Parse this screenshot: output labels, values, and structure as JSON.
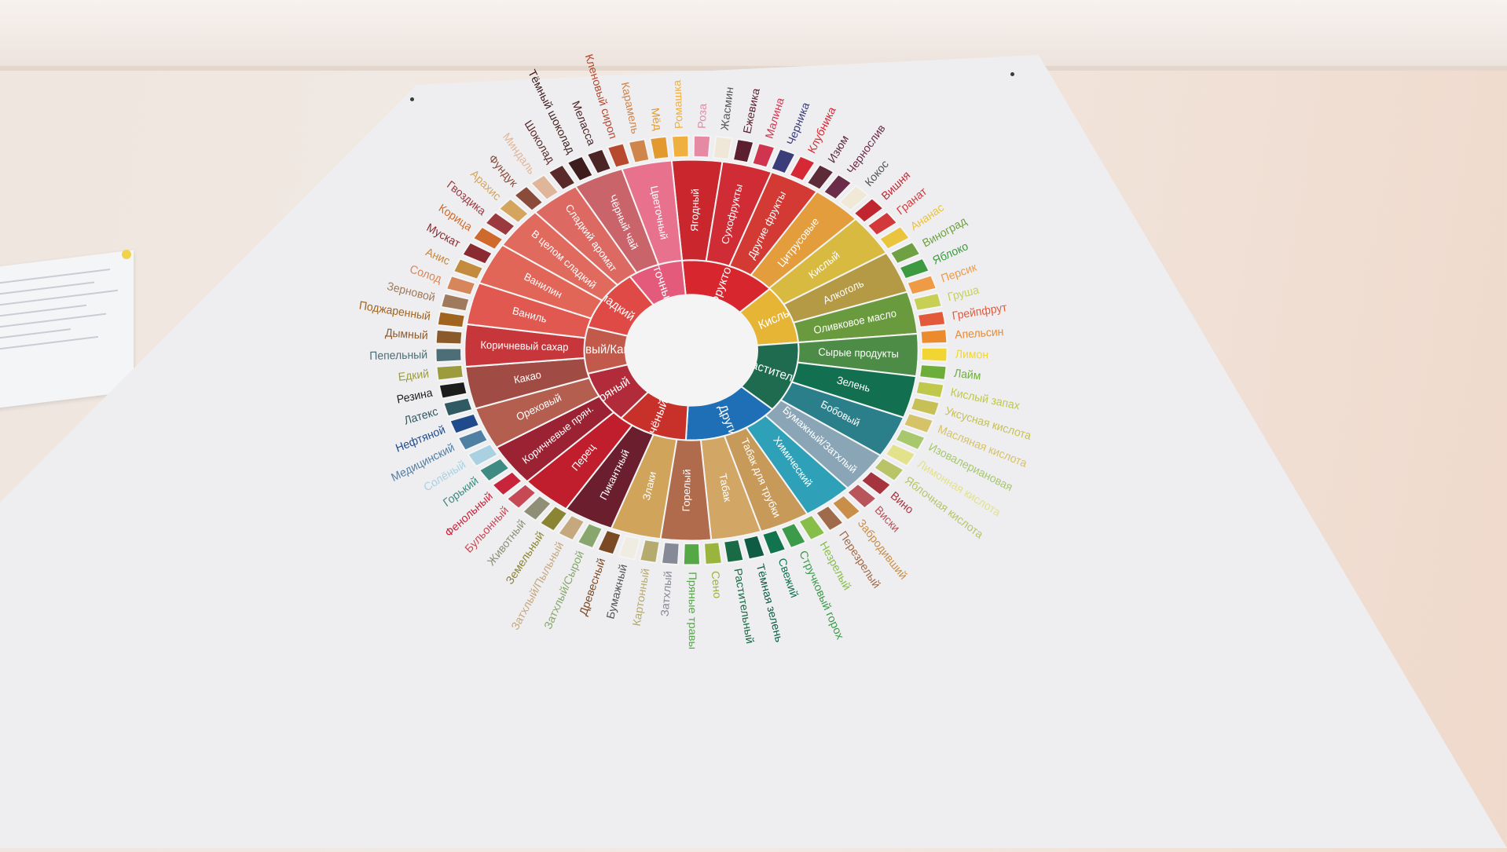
{
  "wheel": {
    "center_label": "",
    "inner": [
      {
        "label": "Фруктовый",
        "color": "#d8262e"
      },
      {
        "label": "Кислый",
        "color": "#e6b535"
      },
      {
        "label": "Растительный",
        "color": "#1f6b4f"
      },
      {
        "label": "Другие",
        "color": "#1e6fb5"
      },
      {
        "label": "Печёный",
        "color": "#c8302a"
      },
      {
        "label": "Пряный",
        "color": "#b22b3a"
      },
      {
        "label": "Ореховый/Какао",
        "color": "#c25a4b"
      },
      {
        "label": "Сладкий",
        "color": "#e04a46"
      },
      {
        "label": "Цветочный",
        "color": "#e45a7a"
      }
    ],
    "middle": [
      {
        "label": "Ягодный",
        "color": "#c9262e"
      },
      {
        "label": "Сухофрукты",
        "color": "#cf2c36"
      },
      {
        "label": "Другие фрукты",
        "color": "#d23a33"
      },
      {
        "label": "Цитрусовые",
        "color": "#e39d3c"
      },
      {
        "label": "Кислый",
        "color": "#d7ba3f"
      },
      {
        "label": "Алкоголь",
        "color": "#b59a45"
      },
      {
        "label": "Оливковое масло",
        "color": "#6a9a3e"
      },
      {
        "label": "Сырые продукты",
        "color": "#4d8c46"
      },
      {
        "label": "Зелень",
        "color": "#127050"
      },
      {
        "label": "Бобовый",
        "color": "#2a7f8a"
      },
      {
        "label": "Бумажный/Затхлый",
        "color": "#8aa6b6"
      },
      {
        "label": "Химический",
        "color": "#2ea0b8"
      },
      {
        "label": "Табак для трубки",
        "color": "#c89a5a"
      },
      {
        "label": "Табак",
        "color": "#d2a765"
      },
      {
        "label": "Горелый",
        "color": "#b06a4c"
      },
      {
        "label": "Злаки",
        "color": "#d0a45a"
      },
      {
        "label": "Пикантный",
        "color": "#6b1f2e"
      },
      {
        "label": "Перец",
        "color": "#c01e2d"
      },
      {
        "label": "Коричневые прян.",
        "color": "#9a2232"
      },
      {
        "label": "Ореховый",
        "color": "#b35e4f"
      },
      {
        "label": "Какао",
        "color": "#a04b43"
      },
      {
        "label": "Коричневый сахар",
        "color": "#c7363a"
      },
      {
        "label": "Ваниль",
        "color": "#e0584f"
      },
      {
        "label": "Ванилин",
        "color": "#e26658"
      },
      {
        "label": "В целом сладкий",
        "color": "#e06a5e"
      },
      {
        "label": "Сладкий аромат",
        "color": "#dd6a62"
      },
      {
        "label": "Чёрный чай",
        "color": "#c9646b"
      },
      {
        "label": "Цветочный",
        "color": "#e8728e"
      }
    ],
    "outer": [
      {
        "label": "Ромашка",
        "color": "#f0b040"
      },
      {
        "label": "Роза",
        "color": "#e58aa2"
      },
      {
        "label": "Жасмин",
        "color": "#efe8d9"
      },
      {
        "label": "Ежевика",
        "color": "#5b1f2f"
      },
      {
        "label": "Малина",
        "color": "#d0344f"
      },
      {
        "label": "Черника",
        "color": "#3b3d7a"
      },
      {
        "label": "Клубника",
        "color": "#d52935"
      },
      {
        "label": "Изюм",
        "color": "#5d2a38"
      },
      {
        "label": "Чернослив",
        "color": "#6a2c48"
      },
      {
        "label": "Кокос",
        "color": "#f0e9d8"
      },
      {
        "label": "Вишня",
        "color": "#c0262f"
      },
      {
        "label": "Гранат",
        "color": "#d3383b"
      },
      {
        "label": "Ананас",
        "color": "#e9c43c"
      },
      {
        "label": "Виноград",
        "color": "#6fa043"
      },
      {
        "label": "Яблоко",
        "color": "#3d9a41"
      },
      {
        "label": "Персик",
        "color": "#ef9a45"
      },
      {
        "label": "Груша",
        "color": "#c8cf55"
      },
      {
        "label": "Грейпфрут",
        "color": "#e35a3a"
      },
      {
        "label": "Апельсин",
        "color": "#ec8a2e"
      },
      {
        "label": "Лимон",
        "color": "#f1d633"
      },
      {
        "label": "Лайм",
        "color": "#6dae3b"
      },
      {
        "label": "Кислый запах",
        "color": "#bfc84a"
      },
      {
        "label": "Уксусная кислота",
        "color": "#c6c056"
      },
      {
        "label": "Масляная кислота",
        "color": "#d6c268"
      },
      {
        "label": "Изовалериановая",
        "color": "#a7c86d"
      },
      {
        "label": "Лимонная кислота",
        "color": "#e3e28b"
      },
      {
        "label": "Яблочная кислота",
        "color": "#b8c467"
      },
      {
        "label": "Вино",
        "color": "#a5343e"
      },
      {
        "label": "Виски",
        "color": "#b8545b"
      },
      {
        "label": "Забродивший",
        "color": "#c98f48"
      },
      {
        "label": "Перезрелый",
        "color": "#a06b4b"
      },
      {
        "label": "Незрелый",
        "color": "#87be4a"
      },
      {
        "label": "Стручковый горох",
        "color": "#3c9b4a"
      },
      {
        "label": "Свежий",
        "color": "#11744f"
      },
      {
        "label": "Тёмная зелень",
        "color": "#0d5c43"
      },
      {
        "label": "Растительный",
        "color": "#1a6b45"
      },
      {
        "label": "Сено",
        "color": "#9ab43e"
      },
      {
        "label": "Пряные травы",
        "color": "#54a845"
      },
      {
        "label": "Затхлый",
        "color": "#868a97"
      },
      {
        "label": "Картонный",
        "color": "#b5ab6e"
      },
      {
        "label": "Бумажный",
        "color": "#efece2"
      },
      {
        "label": "Древесный",
        "color": "#7b4a25"
      },
      {
        "label": "Затхлый/Сырой",
        "color": "#88a66d"
      },
      {
        "label": "Затхлый/Пыльный",
        "color": "#c6a87e"
      },
      {
        "label": "Земельный",
        "color": "#8a8433"
      },
      {
        "label": "Животный",
        "color": "#8f8f77"
      },
      {
        "label": "Бульонный",
        "color": "#c54a55"
      },
      {
        "label": "Фенольный",
        "color": "#c8243c"
      },
      {
        "label": "Горький",
        "color": "#3f8a82"
      },
      {
        "label": "Солёный",
        "color": "#a9d1e2"
      },
      {
        "label": "Медицинский",
        "color": "#4f7fa3"
      },
      {
        "label": "Нефтяной",
        "color": "#1f4b8c"
      },
      {
        "label": "Латекс",
        "color": "#2f5a63"
      },
      {
        "label": "Резина",
        "color": "#1c1c1c"
      },
      {
        "label": "Едкий",
        "color": "#9c9b3d"
      },
      {
        "label": "Пепельный",
        "color": "#4d6e76"
      },
      {
        "label": "Дымный",
        "color": "#8b5a2a"
      },
      {
        "label": "Поджаренный",
        "color": "#a0641e"
      },
      {
        "label": "Зерновой",
        "color": "#a07a5c"
      },
      {
        "label": "Солод",
        "color": "#d7855a"
      },
      {
        "label": "Анис",
        "color": "#c48a3d"
      },
      {
        "label": "Мускат",
        "color": "#8a2b32"
      },
      {
        "label": "Корица",
        "color": "#d06a2c"
      },
      {
        "label": "Гвоздика",
        "color": "#9b3a3e"
      },
      {
        "label": "Арахис",
        "color": "#d4a55e"
      },
      {
        "label": "Фундук",
        "color": "#8a4b3a"
      },
      {
        "label": "Миндаль",
        "color": "#e0b69a"
      },
      {
        "label": "Шоколад",
        "color": "#5a2a2a"
      },
      {
        "label": "Тёмный шоколад",
        "color": "#3d1d1d"
      },
      {
        "label": "Меласса",
        "color": "#4b2526"
      },
      {
        "label": "Кленовый сироп",
        "color": "#b7492f"
      },
      {
        "label": "Карамель",
        "color": "#d0854b"
      },
      {
        "label": "Мёд",
        "color": "#e29a2e"
      }
    ]
  }
}
